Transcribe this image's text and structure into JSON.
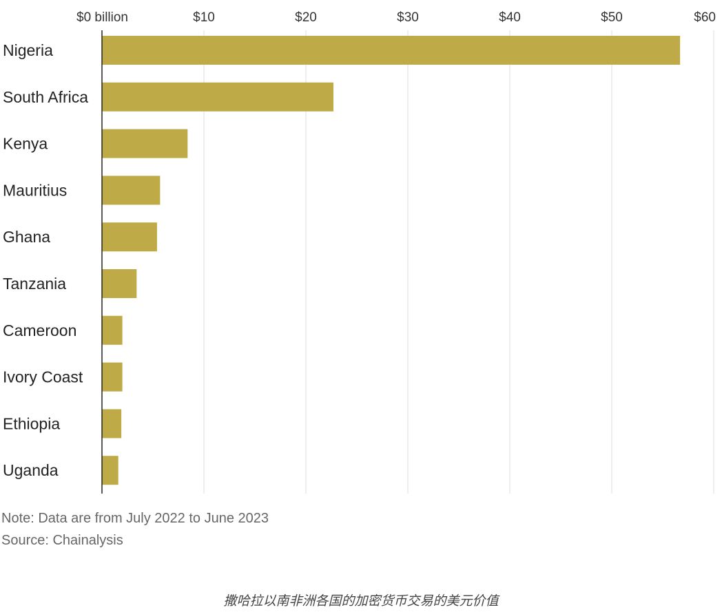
{
  "chart_data": {
    "type": "bar",
    "orientation": "horizontal",
    "categories": [
      "Nigeria",
      "South Africa",
      "Kenya",
      "Mauritius",
      "Ghana",
      "Tanzania",
      "Cameroon",
      "Ivory Coast",
      "Ethiopia",
      "Uganda"
    ],
    "values": [
      56.7,
      22.7,
      8.4,
      5.7,
      5.4,
      3.4,
      2.0,
      2.0,
      1.9,
      1.6
    ],
    "xlim": [
      0,
      60
    ],
    "x_ticks": [
      0,
      10,
      20,
      30,
      40,
      50,
      60
    ],
    "x_tick_labels": [
      "$0 billion",
      "$10",
      "$20",
      "$30",
      "$40",
      "$50",
      "$60"
    ],
    "x_axis_position": "top",
    "grid": true,
    "bar_color": "#bfaa48",
    "grid_color": "#dddddd",
    "axis_color": "#222222"
  },
  "notes": {
    "note": "Note: Data are from July 2022 to June 2023",
    "source": "Source: Chainalysis"
  },
  "caption": "撒哈拉以南非洲各国的加密货币交易的美元价值"
}
